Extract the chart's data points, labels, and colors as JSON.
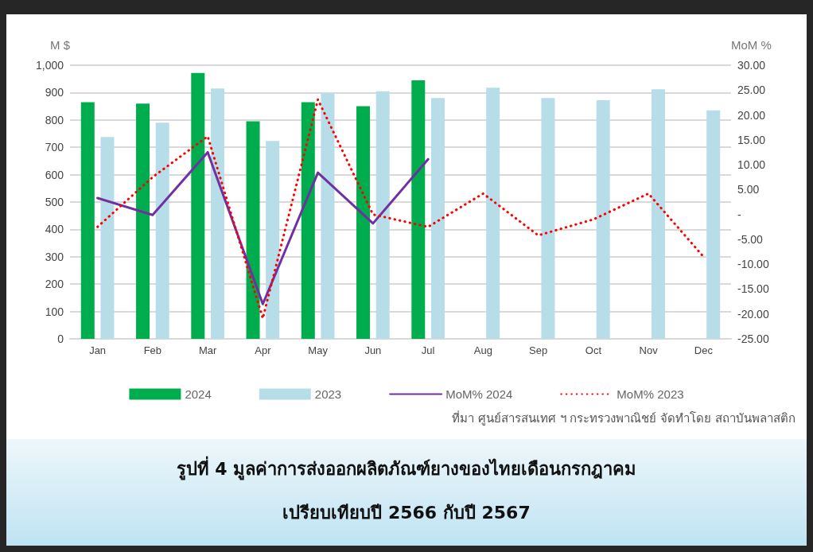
{
  "chart_data": {
    "type": "bar",
    "title": "รูปที่ 4 มูลค่าการส่งออกผลิตภัณฑ์ยางของไทยเดือนกรกฎาคม",
    "subtitle": "เปรียบเทียบปี 2566 กับปี 2567",
    "ylabel": "M $",
    "y2label": "MoM %",
    "annotations": [
      "ที่มา ศูนย์สารสนเทศ ฯ กระทรวงพาณิชย์ จัดทำโดย สถาบันพลาสติก"
    ],
    "categories": [
      "Jan",
      "Feb",
      "Mar",
      "Apr",
      "May",
      "Jun",
      "Jul",
      "Aug",
      "Sep",
      "Oct",
      "Nov",
      "Dec"
    ],
    "series": [
      {
        "name": "2024",
        "color": "#00ad4e",
        "values": [
          865,
          860,
          972,
          795,
          865,
          850,
          945,
          null,
          null,
          null,
          null,
          null
        ]
      },
      {
        "name": "2023",
        "color": "#b7dde8",
        "values": [
          738,
          790,
          915,
          723,
          898,
          905,
          880,
          918,
          880,
          872,
          912,
          835
        ]
      },
      {
        "name": "MoM% 2024",
        "type": "line",
        "axis": "y2",
        "color": "#7030a0",
        "line_style": "solid",
        "values": [
          3.3,
          -0.1,
          12.5,
          -18,
          8.4,
          -1.8,
          11.1,
          null,
          null,
          null,
          null,
          null
        ]
      },
      {
        "name": "MoM% 2023",
        "type": "line",
        "axis": "y2",
        "color": "#ff0000",
        "line_style": "dotted",
        "values": [
          -2.5,
          7.5,
          15.7,
          -20.9,
          23.1,
          0,
          -2.5,
          4.2,
          -4.2,
          -1,
          4.2,
          -8.5
        ]
      }
    ],
    "ylim": [
      0,
      1000
    ],
    "yticks": [
      0,
      100,
      200,
      300,
      400,
      500,
      600,
      700,
      800,
      900,
      {
        "value": 1000,
        "label": "1,000"
      }
    ],
    "y2lim": [
      -25,
      30
    ],
    "y2ticks": [
      {
        "value": -25,
        "label": "-25.00"
      },
      {
        "value": -20,
        "label": "-20.00"
      },
      {
        "value": -15,
        "label": "-15.00"
      },
      {
        "value": -10,
        "label": "-10.00"
      },
      {
        "value": -5,
        "label": "-5.00"
      },
      {
        "value": 0,
        "label": "-"
      },
      {
        "value": 5,
        "label": "5.00"
      },
      {
        "value": 10,
        "label": "10.00"
      },
      {
        "value": 15,
        "label": "15.00"
      },
      {
        "value": 20,
        "label": "20.00"
      },
      {
        "value": 25,
        "label": "25.00"
      },
      {
        "value": 30,
        "label": "30.00"
      }
    ],
    "grid": "y",
    "legend": "bottom",
    "marker": "none"
  }
}
